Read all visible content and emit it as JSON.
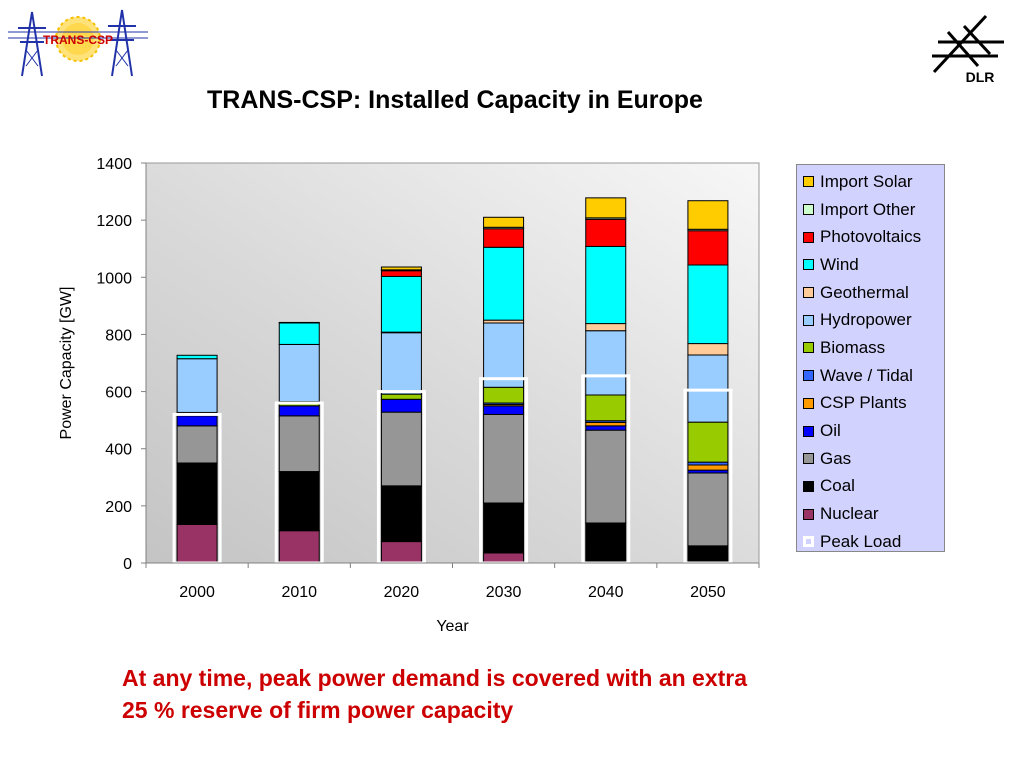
{
  "logo_left": {
    "text": "TRANS-CSP"
  },
  "logo_right": {
    "text": "DLR"
  },
  "title": "TRANS-CSP: Installed Capacity in Europe",
  "caption": {
    "line1": "At any time, peak power demand is covered with an extra",
    "line2": "25 % reserve of firm power capacity"
  },
  "chart_data": {
    "type": "bar",
    "stacked": true,
    "title": "TRANS-CSP: Installed Capacity in Europe",
    "xlabel": "Year",
    "ylabel": "Power Capacity [GW]",
    "ylim": [
      0,
      1400
    ],
    "yticks": [
      0,
      200,
      400,
      600,
      800,
      1000,
      1200,
      1400
    ],
    "grid": false,
    "legend_position": "right",
    "categories": [
      "2000",
      "2010",
      "2020",
      "2030",
      "2040",
      "2050"
    ],
    "series": [
      {
        "name": "Nuclear",
        "color": "#993366",
        "values": [
          135,
          113,
          75,
          35,
          0,
          0
        ]
      },
      {
        "name": "Coal",
        "color": "#000000",
        "values": [
          215,
          207,
          195,
          175,
          140,
          60
        ]
      },
      {
        "name": "Gas",
        "color": "#969696",
        "values": [
          130,
          195,
          258,
          310,
          325,
          255
        ]
      },
      {
        "name": "Oil",
        "color": "#0000ff",
        "values": [
          35,
          35,
          45,
          30,
          15,
          10
        ]
      },
      {
        "name": "CSP Plants",
        "color": "#ff9900",
        "values": [
          0,
          0,
          0,
          5,
          12,
          18
        ]
      },
      {
        "name": "Wave / Tidal",
        "color": "#3366ff",
        "values": [
          0,
          0,
          0,
          5,
          6,
          10
        ]
      },
      {
        "name": "Biomass",
        "color": "#99cc00",
        "values": [
          12,
          15,
          18,
          55,
          90,
          140
        ]
      },
      {
        "name": "Hydropower",
        "color": "#99ccff",
        "values": [
          188,
          200,
          215,
          225,
          225,
          235
        ]
      },
      {
        "name": "Geothermal",
        "color": "#ffcc99",
        "values": [
          0,
          0,
          2,
          10,
          25,
          40
        ]
      },
      {
        "name": "Wind",
        "color": "#00ffff",
        "values": [
          12,
          75,
          195,
          255,
          270,
          275
        ]
      },
      {
        "name": "Photovoltaics",
        "color": "#ff0000",
        "values": [
          0,
          0,
          20,
          65,
          95,
          120
        ]
      },
      {
        "name": "Import Other",
        "color": "#ccffcc",
        "values": [
          0,
          2,
          3,
          5,
          5,
          5
        ]
      },
      {
        "name": "Import Solar",
        "color": "#ffcc00",
        "values": [
          0,
          0,
          10,
          35,
          70,
          100
        ]
      }
    ],
    "peak_load": {
      "name": "Peak Load",
      "color": "#ffffff",
      "values": [
        520,
        560,
        600,
        645,
        655,
        605
      ]
    },
    "legend": [
      "Import Solar",
      "Import Other",
      "Photovoltaics",
      "Wind",
      "Geothermal",
      "Hydropower",
      "Biomass",
      "Wave / Tidal",
      "CSP Plants",
      "Oil",
      "Gas",
      "Coal",
      "Nuclear",
      "Peak Load"
    ]
  }
}
